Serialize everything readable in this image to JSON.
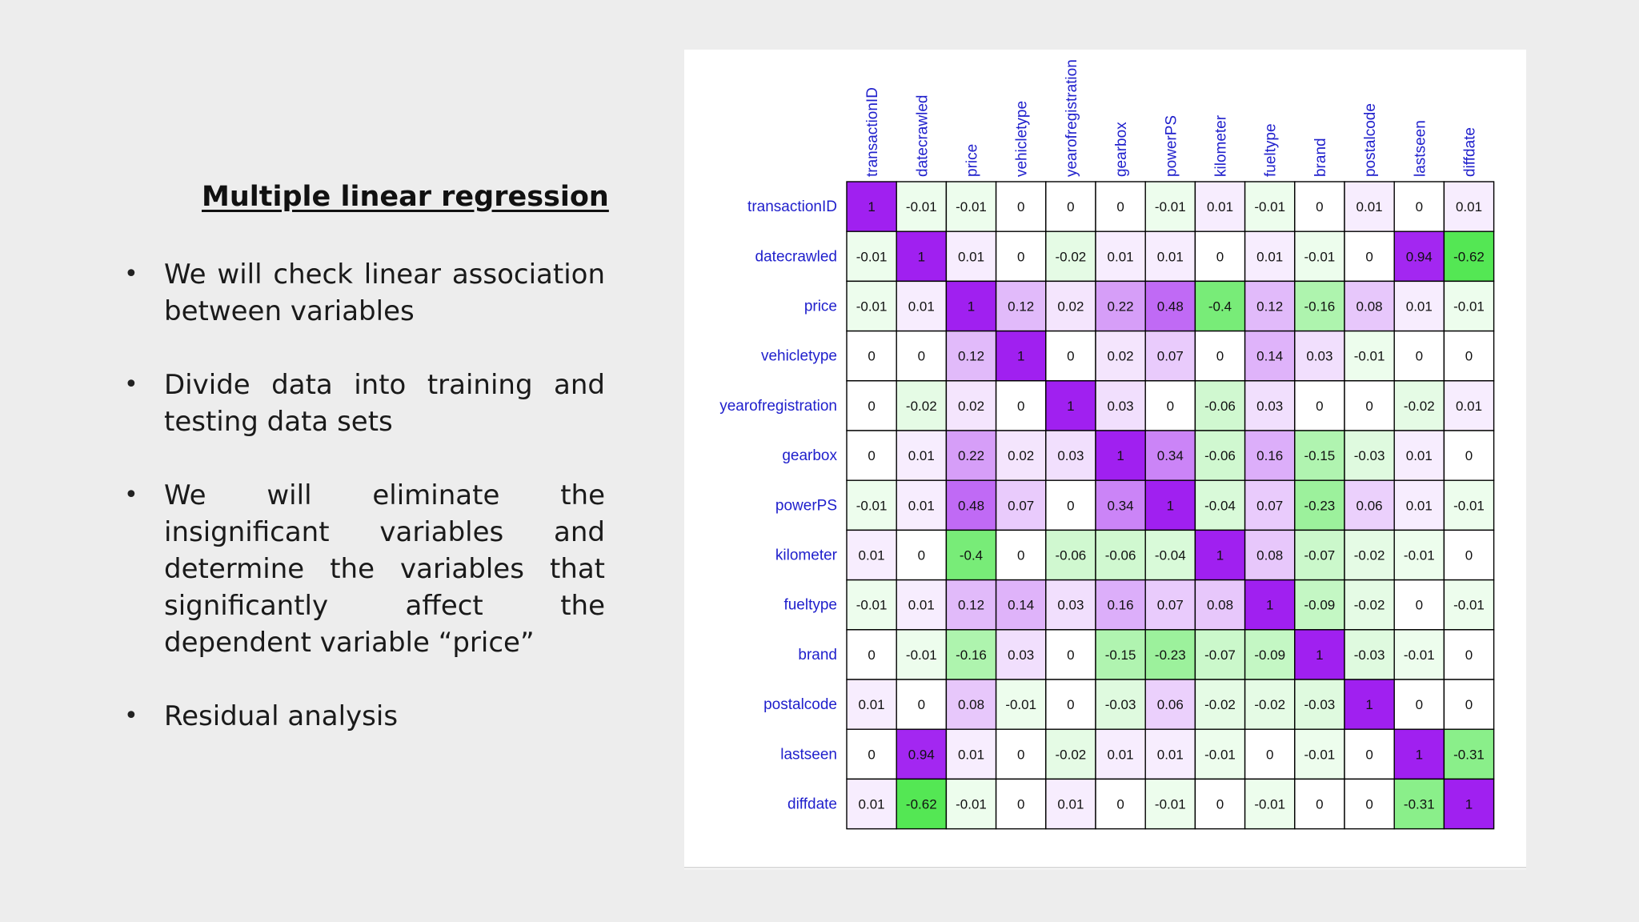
{
  "slide": {
    "title": "Multiple linear regression",
    "bullets": [
      "We will check linear association between variables",
      "Divide data into training and testing data sets",
      "We will eliminate the insignificant variables and determine the variables that significantly affect the dependent variable “price”",
      "Residual analysis"
    ],
    "bullet_symbol": "•"
  },
  "colors": {
    "slide_background": "#ededed",
    "positive_max": "#a020f0",
    "negative_max": "#20e020",
    "label_text": "#2020cc"
  },
  "chart_data": {
    "type": "heatmap",
    "title": "",
    "variables": [
      "transactionID",
      "datecrawled",
      "price",
      "vehicletype",
      "yearofregistration",
      "gearbox",
      "powerPS",
      "kilometer",
      "fueltype",
      "brand",
      "postalcode",
      "lastseen",
      "diffdate"
    ],
    "value_range": [
      -1,
      1
    ],
    "matrix": [
      [
        1,
        -0.01,
        -0.01,
        0,
        0,
        0,
        -0.01,
        0.01,
        -0.01,
        0,
        0.01,
        0,
        0.01
      ],
      [
        -0.01,
        1,
        0.01,
        0,
        -0.02,
        0.01,
        0.01,
        0,
        0.01,
        -0.01,
        0,
        0.94,
        -0.62
      ],
      [
        -0.01,
        0.01,
        1,
        0.12,
        0.02,
        0.22,
        0.48,
        -0.4,
        0.12,
        -0.16,
        0.08,
        0.01,
        -0.01
      ],
      [
        0,
        0,
        0.12,
        1,
        0,
        0.02,
        0.07,
        0,
        0.14,
        0.03,
        -0.01,
        0,
        0
      ],
      [
        0,
        -0.02,
        0.02,
        0,
        1,
        0.03,
        0,
        -0.06,
        0.03,
        0,
        0,
        -0.02,
        0.01
      ],
      [
        0,
        0.01,
        0.22,
        0.02,
        0.03,
        1,
        0.34,
        -0.06,
        0.16,
        -0.15,
        -0.03,
        0.01,
        0
      ],
      [
        -0.01,
        0.01,
        0.48,
        0.07,
        0,
        0.34,
        1,
        -0.04,
        0.07,
        -0.23,
        0.06,
        0.01,
        -0.01
      ],
      [
        0.01,
        0,
        -0.4,
        0,
        -0.06,
        -0.06,
        -0.04,
        1,
        0.08,
        -0.07,
        -0.02,
        -0.01,
        0
      ],
      [
        -0.01,
        0.01,
        0.12,
        0.14,
        0.03,
        0.16,
        0.07,
        0.08,
        1,
        -0.09,
        -0.02,
        0,
        -0.01
      ],
      [
        0,
        -0.01,
        -0.16,
        0.03,
        0,
        -0.15,
        -0.23,
        -0.07,
        -0.09,
        1,
        -0.03,
        -0.01,
        0
      ],
      [
        0.01,
        0,
        0.08,
        -0.01,
        0,
        -0.03,
        0.06,
        -0.02,
        -0.02,
        -0.03,
        1,
        0,
        0
      ],
      [
        0,
        0.94,
        0.01,
        0,
        -0.02,
        0.01,
        0.01,
        -0.01,
        0,
        -0.01,
        0,
        1,
        -0.31
      ],
      [
        0.01,
        -0.62,
        -0.01,
        0,
        0.01,
        0,
        -0.01,
        0,
        -0.01,
        0,
        0,
        -0.31,
        1
      ]
    ]
  }
}
